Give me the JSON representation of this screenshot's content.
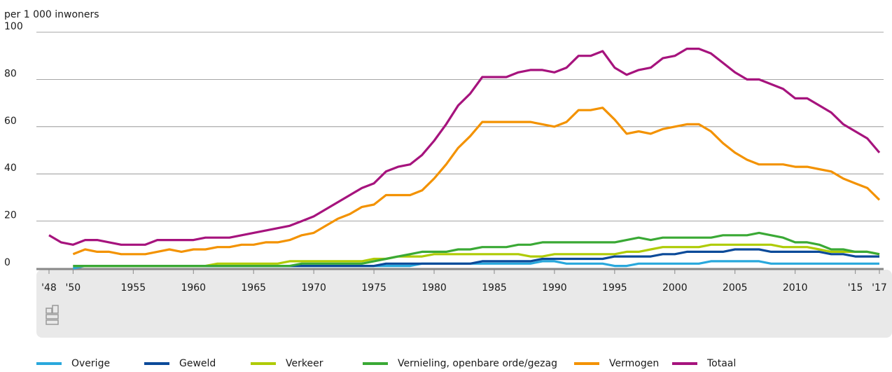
{
  "chart_data": {
    "type": "line",
    "y_axis_label": "per 1 000 inwoners",
    "x": [
      1948,
      1949,
      1950,
      1951,
      1952,
      1953,
      1954,
      1955,
      1956,
      1957,
      1958,
      1959,
      1960,
      1961,
      1962,
      1963,
      1964,
      1965,
      1966,
      1967,
      1968,
      1969,
      1970,
      1971,
      1972,
      1973,
      1974,
      1975,
      1976,
      1977,
      1978,
      1979,
      1980,
      1981,
      1982,
      1983,
      1984,
      1985,
      1986,
      1987,
      1988,
      1989,
      1990,
      1991,
      1992,
      1993,
      1994,
      1995,
      1996,
      1997,
      1998,
      1999,
      2000,
      2001,
      2002,
      2003,
      2004,
      2005,
      2006,
      2007,
      2008,
      2009,
      2010,
      2011,
      2012,
      2013,
      2014,
      2015,
      2016,
      2017
    ],
    "series": [
      {
        "name": "Overige",
        "color": "#29a8dc",
        "values": [
          null,
          null,
          0,
          1,
          1,
          1,
          1,
          1,
          1,
          1,
          1,
          1,
          1,
          1,
          1,
          1,
          1,
          1,
          1,
          1,
          1,
          1,
          1,
          1,
          1,
          1,
          1,
          1,
          1,
          1,
          1,
          2,
          2,
          2,
          2,
          2,
          2,
          2,
          2,
          2,
          2,
          3,
          3,
          2,
          2,
          2,
          2,
          1,
          1,
          2,
          2,
          2,
          2,
          2,
          2,
          3,
          3,
          3,
          3,
          3,
          2,
          2,
          2,
          2,
          2,
          2,
          2,
          2,
          2,
          2
        ]
      },
      {
        "name": "Geweld",
        "color": "#0b4a99",
        "values": [
          null,
          null,
          1,
          1,
          1,
          1,
          1,
          1,
          1,
          1,
          1,
          1,
          1,
          1,
          1,
          1,
          1,
          1,
          1,
          1,
          1,
          1,
          1,
          1,
          1,
          1,
          1,
          1,
          2,
          2,
          2,
          2,
          2,
          2,
          2,
          2,
          3,
          3,
          3,
          3,
          3,
          4,
          4,
          4,
          4,
          4,
          4,
          5,
          5,
          5,
          5,
          6,
          6,
          7,
          7,
          7,
          7,
          8,
          8,
          8,
          7,
          7,
          7,
          7,
          7,
          6,
          6,
          5,
          5,
          5
        ]
      },
      {
        "name": "Verkeer",
        "color": "#afcb05",
        "values": [
          null,
          null,
          1,
          1,
          1,
          1,
          1,
          1,
          1,
          1,
          1,
          1,
          1,
          1,
          2,
          2,
          2,
          2,
          2,
          2,
          3,
          3,
          3,
          3,
          3,
          3,
          3,
          4,
          4,
          5,
          5,
          5,
          6,
          6,
          6,
          6,
          6,
          6,
          6,
          6,
          5,
          5,
          6,
          6,
          6,
          6,
          6,
          6,
          7,
          7,
          8,
          9,
          9,
          9,
          9,
          10,
          10,
          10,
          10,
          10,
          10,
          9,
          9,
          9,
          8,
          7,
          7,
          7,
          7,
          6
        ]
      },
      {
        "name": "Vernieling, openbare orde/gezag",
        "color": "#3aa935",
        "values": [
          null,
          null,
          1,
          1,
          1,
          1,
          1,
          1,
          1,
          1,
          1,
          1,
          1,
          1,
          1,
          1,
          1,
          1,
          1,
          1,
          1,
          2,
          2,
          2,
          2,
          2,
          2,
          3,
          4,
          5,
          6,
          7,
          7,
          7,
          8,
          8,
          9,
          9,
          9,
          10,
          10,
          11,
          11,
          11,
          11,
          11,
          11,
          11,
          12,
          13,
          12,
          13,
          13,
          13,
          13,
          13,
          14,
          14,
          14,
          15,
          14,
          13,
          11,
          11,
          10,
          8,
          8,
          7,
          7,
          6
        ]
      },
      {
        "name": "Vermogen",
        "color": "#f39200",
        "values": [
          null,
          null,
          6,
          8,
          7,
          7,
          6,
          6,
          6,
          7,
          8,
          7,
          8,
          8,
          9,
          9,
          10,
          10,
          11,
          11,
          12,
          14,
          15,
          18,
          21,
          23,
          26,
          27,
          31,
          31,
          31,
          33,
          38,
          44,
          51,
          56,
          62,
          62,
          62,
          62,
          62,
          61,
          60,
          62,
          67,
          67,
          68,
          63,
          57,
          58,
          57,
          59,
          60,
          61,
          61,
          58,
          53,
          49,
          46,
          44,
          44,
          44,
          43,
          43,
          42,
          41,
          38,
          36,
          34,
          29
        ]
      },
      {
        "name": "Totaal",
        "color": "#a6137d",
        "values": [
          14,
          11,
          10,
          12,
          12,
          11,
          10,
          10,
          10,
          12,
          12,
          12,
          12,
          13,
          13,
          13,
          14,
          15,
          16,
          17,
          18,
          20,
          22,
          25,
          28,
          31,
          34,
          36,
          41,
          43,
          44,
          48,
          54,
          61,
          69,
          74,
          81,
          81,
          81,
          83,
          84,
          84,
          83,
          85,
          90,
          90,
          92,
          85,
          82,
          84,
          85,
          89,
          90,
          93,
          93,
          91,
          87,
          83,
          80,
          80,
          78,
          76,
          72,
          72,
          69,
          66,
          61,
          58,
          55,
          49
        ]
      }
    ],
    "xlim": [
      1948,
      2017
    ],
    "xticks": [
      {
        "value": 1948,
        "label": "'48"
      },
      {
        "value": 1950,
        "label": "'50"
      },
      1955,
      1960,
      1965,
      1970,
      1975,
      1980,
      1985,
      1990,
      1995,
      2000,
      2005,
      2010,
      {
        "value": 2015,
        "label": "'15"
      },
      {
        "value": 2017,
        "label": "'17"
      }
    ],
    "ylim": [
      0,
      100
    ],
    "yticks": [
      0,
      20,
      40,
      60,
      80,
      100
    ],
    "grid": true,
    "legend": "bottom"
  }
}
